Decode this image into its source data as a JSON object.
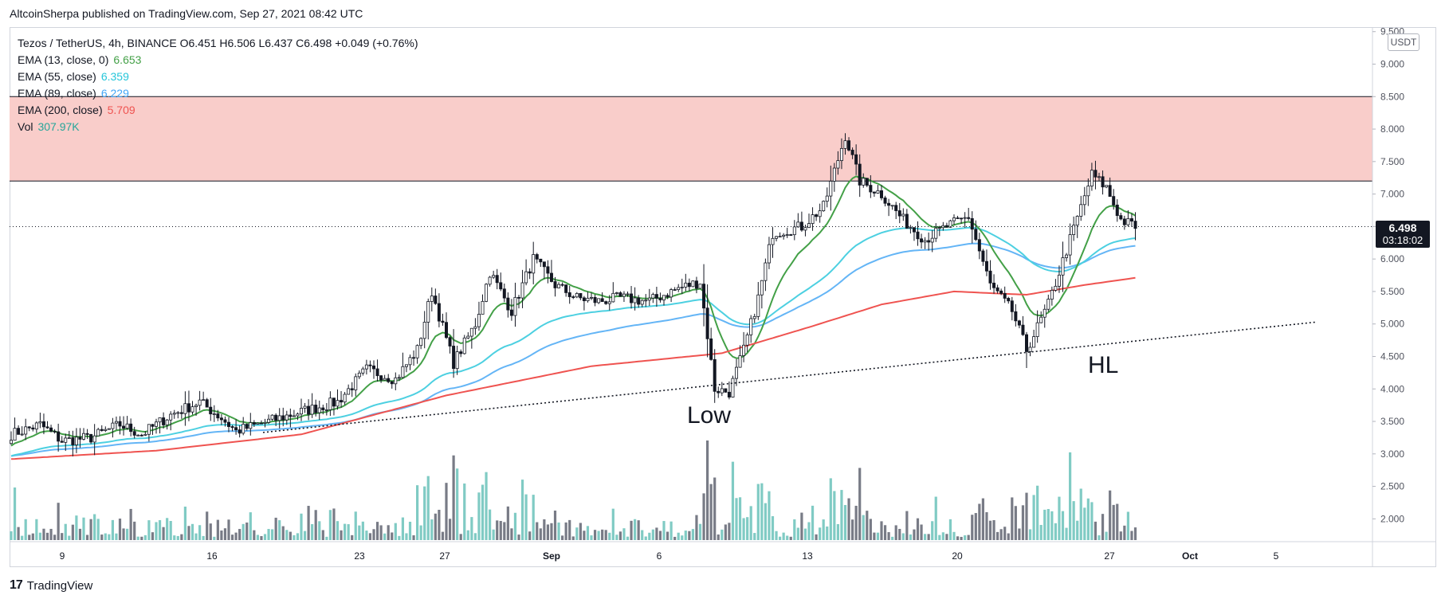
{
  "publisher": "AltcoinSherpa published on TradingView.com, Sep 27, 2021 08:42 UTC",
  "brand": {
    "logo": "17",
    "name": "TradingView"
  },
  "legend": {
    "symbol_line": "Tezos / TetherUS, 4h, BINANCE  O6.451  H6.506  L6.437  C6.498  +0.049 (+0.76%)",
    "rows": [
      {
        "label": "EMA (13, close, 0)",
        "value": "6.653",
        "color": "#43a047"
      },
      {
        "label": "EMA (55, close)",
        "value": "6.359",
        "color": "#26c6da"
      },
      {
        "label": "EMA (89, close)",
        "value": "6.229",
        "color": "#64b5f6"
      },
      {
        "label": "EMA (200, close)",
        "value": "5.709",
        "color": "#ef5350"
      },
      {
        "label": "Vol",
        "value": "307.97K",
        "color": "#26a69a"
      }
    ]
  },
  "price_axis": {
    "unit": "USDT",
    "ticks": [
      "9.500",
      "9.000",
      "8.500",
      "8.000",
      "7.500",
      "7.000",
      "6.500",
      "6.000",
      "5.500",
      "5.000",
      "4.500",
      "4.000",
      "3.500",
      "3.000",
      "2.500",
      "2.000"
    ],
    "current_price": "6.498",
    "countdown": "03:18:02"
  },
  "annotations": {
    "low": "Low",
    "hl": "HL"
  },
  "chart_data": {
    "type": "candlestick",
    "x_ticks": [
      "9",
      "16",
      "23",
      "27",
      "Sep",
      "6",
      "13",
      "20",
      "27",
      "Oct",
      "5"
    ],
    "ylim": [
      1.7,
      9.5
    ],
    "resistance_zone": [
      7.2,
      8.5
    ],
    "last_price": 6.498,
    "trendline": {
      "from": [
        0,
        3.33
      ],
      "to": [
        1.0,
        5.03
      ]
    },
    "colors": {
      "zone": "#f9cdca",
      "ema13": "#43a047",
      "ema55": "#4dd0e1",
      "ema89": "#64b5f6",
      "ema200": "#ef5350",
      "vol_up": "#80cbc4",
      "vol_down": "#787b86"
    },
    "price_anchors": [
      [
        0,
        3.3
      ],
      [
        8,
        3.45
      ],
      [
        14,
        3.2
      ],
      [
        22,
        3.25
      ],
      [
        30,
        3.45
      ],
      [
        36,
        3.3
      ],
      [
        44,
        3.6
      ],
      [
        52,
        3.8
      ],
      [
        58,
        3.55
      ],
      [
        62,
        3.35
      ],
      [
        68,
        3.45
      ],
      [
        80,
        3.65
      ],
      [
        90,
        3.8
      ],
      [
        98,
        4.3
      ],
      [
        106,
        4.15
      ],
      [
        112,
        4.6
      ],
      [
        116,
        5.5
      ],
      [
        122,
        4.4
      ],
      [
        128,
        5.0
      ],
      [
        132,
        5.8
      ],
      [
        138,
        5.2
      ],
      [
        144,
        6.0
      ],
      [
        150,
        5.6
      ],
      [
        156,
        5.4
      ],
      [
        162,
        5.35
      ],
      [
        168,
        5.4
      ],
      [
        176,
        5.35
      ],
      [
        184,
        5.55
      ],
      [
        190,
        5.65
      ],
      [
        194,
        4.0
      ],
      [
        198,
        3.95
      ],
      [
        202,
        4.6
      ],
      [
        206,
        5.4
      ],
      [
        210,
        6.4
      ],
      [
        218,
        6.5
      ],
      [
        224,
        6.8
      ],
      [
        230,
        7.9
      ],
      [
        234,
        7.2
      ],
      [
        240,
        7.0
      ],
      [
        246,
        6.6
      ],
      [
        252,
        6.3
      ],
      [
        258,
        6.5
      ],
      [
        264,
        6.65
      ],
      [
        270,
        5.6
      ],
      [
        276,
        5.2
      ],
      [
        280,
        4.6
      ],
      [
        286,
        5.3
      ],
      [
        292,
        6.3
      ],
      [
        298,
        7.3
      ],
      [
        302,
        7.1
      ],
      [
        306,
        6.6
      ],
      [
        310,
        6.5
      ]
    ],
    "ema200_anchors": [
      [
        0,
        2.92
      ],
      [
        40,
        3.05
      ],
      [
        80,
        3.3
      ],
      [
        120,
        3.9
      ],
      [
        160,
        4.35
      ],
      [
        196,
        4.55
      ],
      [
        220,
        4.95
      ],
      [
        240,
        5.3
      ],
      [
        260,
        5.5
      ],
      [
        280,
        5.45
      ],
      [
        296,
        5.6
      ],
      [
        310,
        5.71
      ]
    ]
  }
}
